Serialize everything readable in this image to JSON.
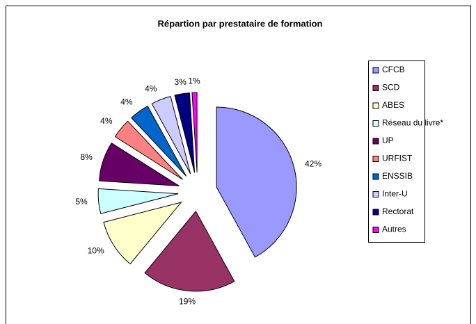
{
  "chart_data": {
    "type": "pie",
    "title": "Répartion par prestataire de formation",
    "categories": [
      "CFCB",
      "SCD",
      "ABES",
      "Réseau du livre*",
      "UP",
      "URFIST",
      "ENSSIB",
      "Inter-U",
      "Rectorat",
      "Autres"
    ],
    "values": [
      42,
      19,
      10,
      5,
      8,
      4,
      4,
      4,
      3,
      1
    ],
    "value_labels": [
      "42%",
      "19%",
      "10%",
      "5%",
      "8%",
      "4%",
      "4%",
      "4%",
      "3%",
      "1%"
    ],
    "colors": [
      "#9999ff",
      "#993366",
      "#ffffcc",
      "#ccffff",
      "#660066",
      "#ff8080",
      "#0066cc",
      "#ccccff",
      "#000080",
      "#ff00ff"
    ],
    "legend": "right",
    "exploded": true
  }
}
